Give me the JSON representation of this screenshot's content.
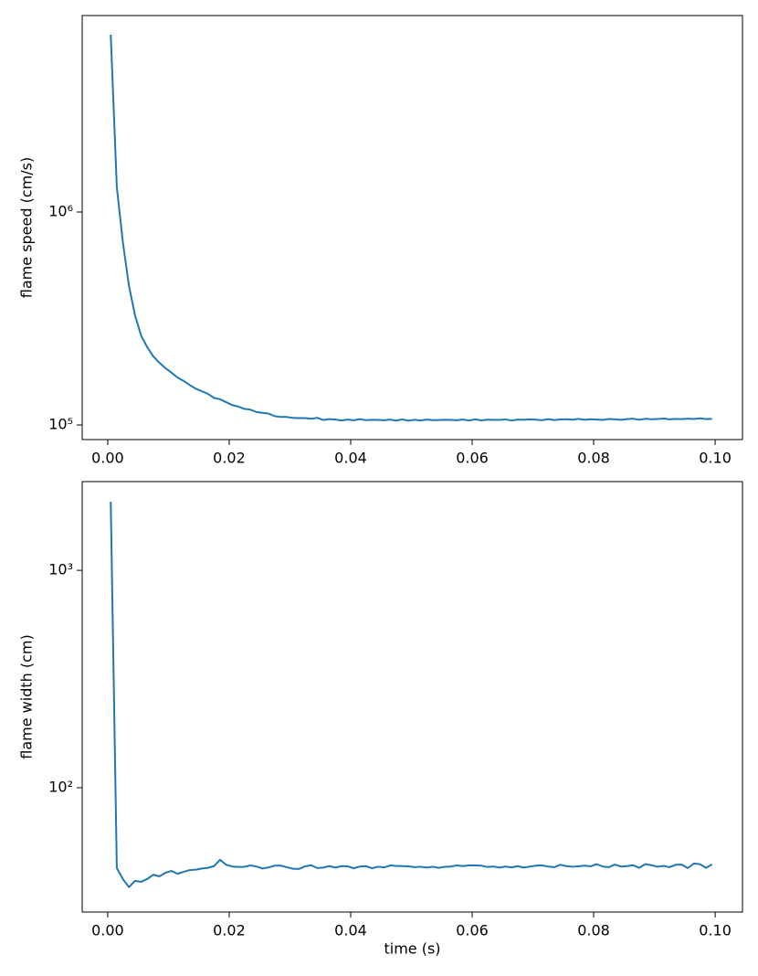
{
  "chart_data": [
    {
      "type": "line",
      "ylabel": "flame speed (cm/s)",
      "log_y": true,
      "x": [
        0.0005,
        0.0015,
        0.0025,
        0.0035,
        0.0045,
        0.0055,
        0.0065,
        0.0075,
        0.0085,
        0.0095,
        0.0105,
        0.0115,
        0.0125,
        0.0135,
        0.0145,
        0.0155,
        0.0165,
        0.0175,
        0.0185,
        0.0195,
        0.0205,
        0.0215,
        0.0225,
        0.0235,
        0.0245,
        0.0255,
        0.0265,
        0.0275,
        0.0285,
        0.0295,
        0.0305,
        0.0315,
        0.0325,
        0.0335,
        0.0345,
        0.0355,
        0.0365,
        0.0375,
        0.0385,
        0.0395,
        0.0405,
        0.0415,
        0.0425,
        0.0435,
        0.0445,
        0.0455,
        0.0465,
        0.0475,
        0.0485,
        0.0495,
        0.0505,
        0.0515,
        0.0525,
        0.0535,
        0.0545,
        0.0555,
        0.0565,
        0.0575,
        0.0585,
        0.0595,
        0.0605,
        0.0615,
        0.0625,
        0.0635,
        0.0645,
        0.0655,
        0.0665,
        0.0675,
        0.0685,
        0.0695,
        0.0705,
        0.0715,
        0.0725,
        0.0735,
        0.0745,
        0.0755,
        0.0765,
        0.0775,
        0.0785,
        0.0795,
        0.0805,
        0.0815,
        0.0825,
        0.0835,
        0.0845,
        0.0855,
        0.0865,
        0.0875,
        0.0885,
        0.0895,
        0.0905,
        0.0915,
        0.0925,
        0.0935,
        0.0945,
        0.0955,
        0.0965,
        0.0975,
        0.0985,
        0.0995
      ],
      "series": [
        {
          "color": "#1f77b4",
          "values": [
            6800000,
            1310000,
            720000,
            450000,
            327000,
            263000,
            232000,
            210000,
            196000,
            185000,
            176000,
            167000,
            161000,
            154000,
            148000,
            144000,
            140000,
            134000,
            132000,
            128000,
            124000,
            122000,
            119000,
            118000,
            115000,
            114000,
            113000,
            110000,
            109000,
            109000,
            108000,
            107700,
            107700,
            107000,
            108000,
            105500,
            106500,
            106000,
            105000,
            106000,
            105200,
            106500,
            105300,
            105800,
            105600,
            105200,
            106000,
            104800,
            106200,
            104700,
            105800,
            105000,
            106000,
            105400,
            105500,
            105700,
            105600,
            105200,
            106100,
            104900,
            106300,
            105100,
            105900,
            105800,
            105600,
            106200,
            104900,
            106000,
            105700,
            106300,
            105900,
            105300,
            106500,
            105500,
            106200,
            106400,
            105900,
            106800,
            105700,
            106400,
            106000,
            105600,
            106700,
            106300,
            105800,
            106500,
            107000,
            105800,
            106900,
            106400,
            106600,
            107200,
            106300,
            106800,
            106500,
            107100,
            106700,
            107400,
            106600,
            106800
          ]
        }
      ],
      "xlim": [
        -0.0042,
        0.1045
      ],
      "ylim": [
        85400,
        8370000
      ],
      "xticks": [
        {
          "value": 0,
          "label": "0.00"
        },
        {
          "value": 0.02,
          "label": "0.02"
        },
        {
          "value": 0.04,
          "label": "0.04"
        },
        {
          "value": 0.06,
          "label": "0.06"
        },
        {
          "value": 0.08,
          "label": "0.08"
        },
        {
          "value": 0.1,
          "label": "0.10"
        }
      ],
      "yticks": [
        {
          "value": 100000,
          "label": "10⁵"
        },
        {
          "value": 1000000,
          "label": "10⁶"
        }
      ]
    },
    {
      "type": "line",
      "xlabel": "time (s)",
      "ylabel": "flame width (cm)",
      "log_y": true,
      "x": [
        0.0005,
        0.0015,
        0.0025,
        0.0035,
        0.0045,
        0.0055,
        0.0065,
        0.0075,
        0.0085,
        0.0095,
        0.0105,
        0.0115,
        0.0125,
        0.0135,
        0.0145,
        0.0155,
        0.0165,
        0.0175,
        0.0185,
        0.0195,
        0.0205,
        0.0215,
        0.0225,
        0.0235,
        0.0245,
        0.0255,
        0.0265,
        0.0275,
        0.0285,
        0.0295,
        0.0305,
        0.0315,
        0.0325,
        0.0335,
        0.0345,
        0.0355,
        0.0365,
        0.0375,
        0.0385,
        0.0395,
        0.0405,
        0.0415,
        0.0425,
        0.0435,
        0.0445,
        0.0455,
        0.0465,
        0.0475,
        0.0485,
        0.0495,
        0.0505,
        0.0515,
        0.0525,
        0.0535,
        0.0545,
        0.0555,
        0.0565,
        0.0575,
        0.0585,
        0.0595,
        0.0605,
        0.0615,
        0.0625,
        0.0635,
        0.0645,
        0.0655,
        0.0665,
        0.0675,
        0.0685,
        0.0695,
        0.0705,
        0.0715,
        0.0725,
        0.0735,
        0.0745,
        0.0755,
        0.0765,
        0.0775,
        0.0785,
        0.0795,
        0.0805,
        0.0815,
        0.0825,
        0.0835,
        0.0845,
        0.0855,
        0.0865,
        0.0875,
        0.0885,
        0.0895,
        0.0905,
        0.0915,
        0.0925,
        0.0935,
        0.0945,
        0.0955,
        0.0965,
        0.0975,
        0.0985,
        0.0995
      ],
      "series": [
        {
          "color": "#1f77b4",
          "values": [
            2066,
            42.7,
            38.0,
            34.9,
            37.3,
            36.9,
            38.0,
            39.8,
            39.1,
            40.6,
            41.4,
            40.2,
            41.0,
            41.8,
            42.0,
            42.5,
            42.8,
            43.6,
            46.6,
            44.2,
            43.4,
            43.2,
            43.3,
            43.9,
            43.4,
            42.5,
            43.0,
            43.8,
            43.8,
            43.1,
            42.4,
            42.3,
            43.5,
            44.0,
            42.7,
            42.9,
            43.6,
            42.9,
            43.6,
            43.5,
            42.6,
            43.4,
            43.6,
            42.6,
            43.3,
            43.0,
            43.9,
            43.7,
            43.6,
            43.5,
            43.1,
            43.3,
            42.9,
            43.3,
            42.8,
            43.3,
            43.4,
            43.9,
            43.6,
            43.9,
            43.9,
            43.8,
            43.2,
            43.4,
            42.9,
            43.4,
            43.0,
            43.6,
            42.9,
            43.4,
            43.8,
            43.9,
            43.4,
            43.1,
            44.2,
            43.6,
            43.3,
            43.5,
            43.8,
            43.5,
            44.5,
            43.4,
            43.1,
            44.3,
            43.4,
            43.6,
            44.0,
            42.8,
            44.5,
            44.0,
            43.3,
            43.7,
            43.1,
            44.2,
            44.3,
            42.7,
            44.8,
            44.5,
            42.8,
            44.4
          ]
        }
      ],
      "xlim": [
        -0.0042,
        0.1045
      ],
      "ylim": [
        26.8,
        2560
      ],
      "xticks": [
        {
          "value": 0,
          "label": "0.00"
        },
        {
          "value": 0.02,
          "label": "0.02"
        },
        {
          "value": 0.04,
          "label": "0.04"
        },
        {
          "value": 0.06,
          "label": "0.06"
        },
        {
          "value": 0.08,
          "label": "0.08"
        },
        {
          "value": 0.1,
          "label": "0.10"
        }
      ],
      "yticks": [
        {
          "value": 100,
          "label": "10²"
        },
        {
          "value": 1000,
          "label": "10³"
        }
      ]
    }
  ]
}
